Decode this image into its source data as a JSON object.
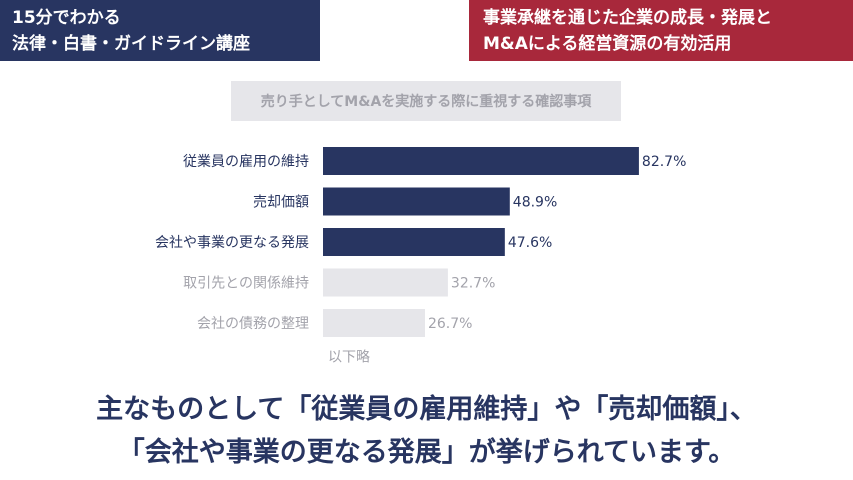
{
  "header": {
    "left": {
      "line1": "15分でわかる",
      "line2": "法律・白書・ガイドライン講座"
    },
    "right": {
      "line1": "事業承継を通じた企業の成長・発展と",
      "line2": "M&Aによる経営資源の有効活用"
    }
  },
  "chart_data": {
    "type": "bar",
    "orientation": "horizontal",
    "title": "売り手としてM&Aを実施する際に重視する確認事項",
    "categories": [
      "従業員の雇用の維持",
      "売却価額",
      "会社や事業の更なる発展",
      "取引先との関係維持",
      "会社の債務の整理"
    ],
    "values": [
      82.7,
      48.9,
      47.6,
      32.7,
      26.7
    ],
    "value_labels": [
      "82.7%",
      "48.9%",
      "47.6%",
      "32.7%",
      "26.7%"
    ],
    "highlighted": [
      true,
      true,
      true,
      false,
      false
    ],
    "xlim": [
      0,
      100
    ],
    "footnote": "以下略",
    "colors": {
      "highlight_bar": "#283561",
      "muted_bar": "#e6e6ea",
      "highlight_text": "#283561",
      "muted_text": "#a3a3ab"
    }
  },
  "caption": {
    "line1": "主なものとして「従業員の雇用維持」や「売却価額」、",
    "line2": "「会社や事業の更なる発展」が挙げられています。"
  }
}
